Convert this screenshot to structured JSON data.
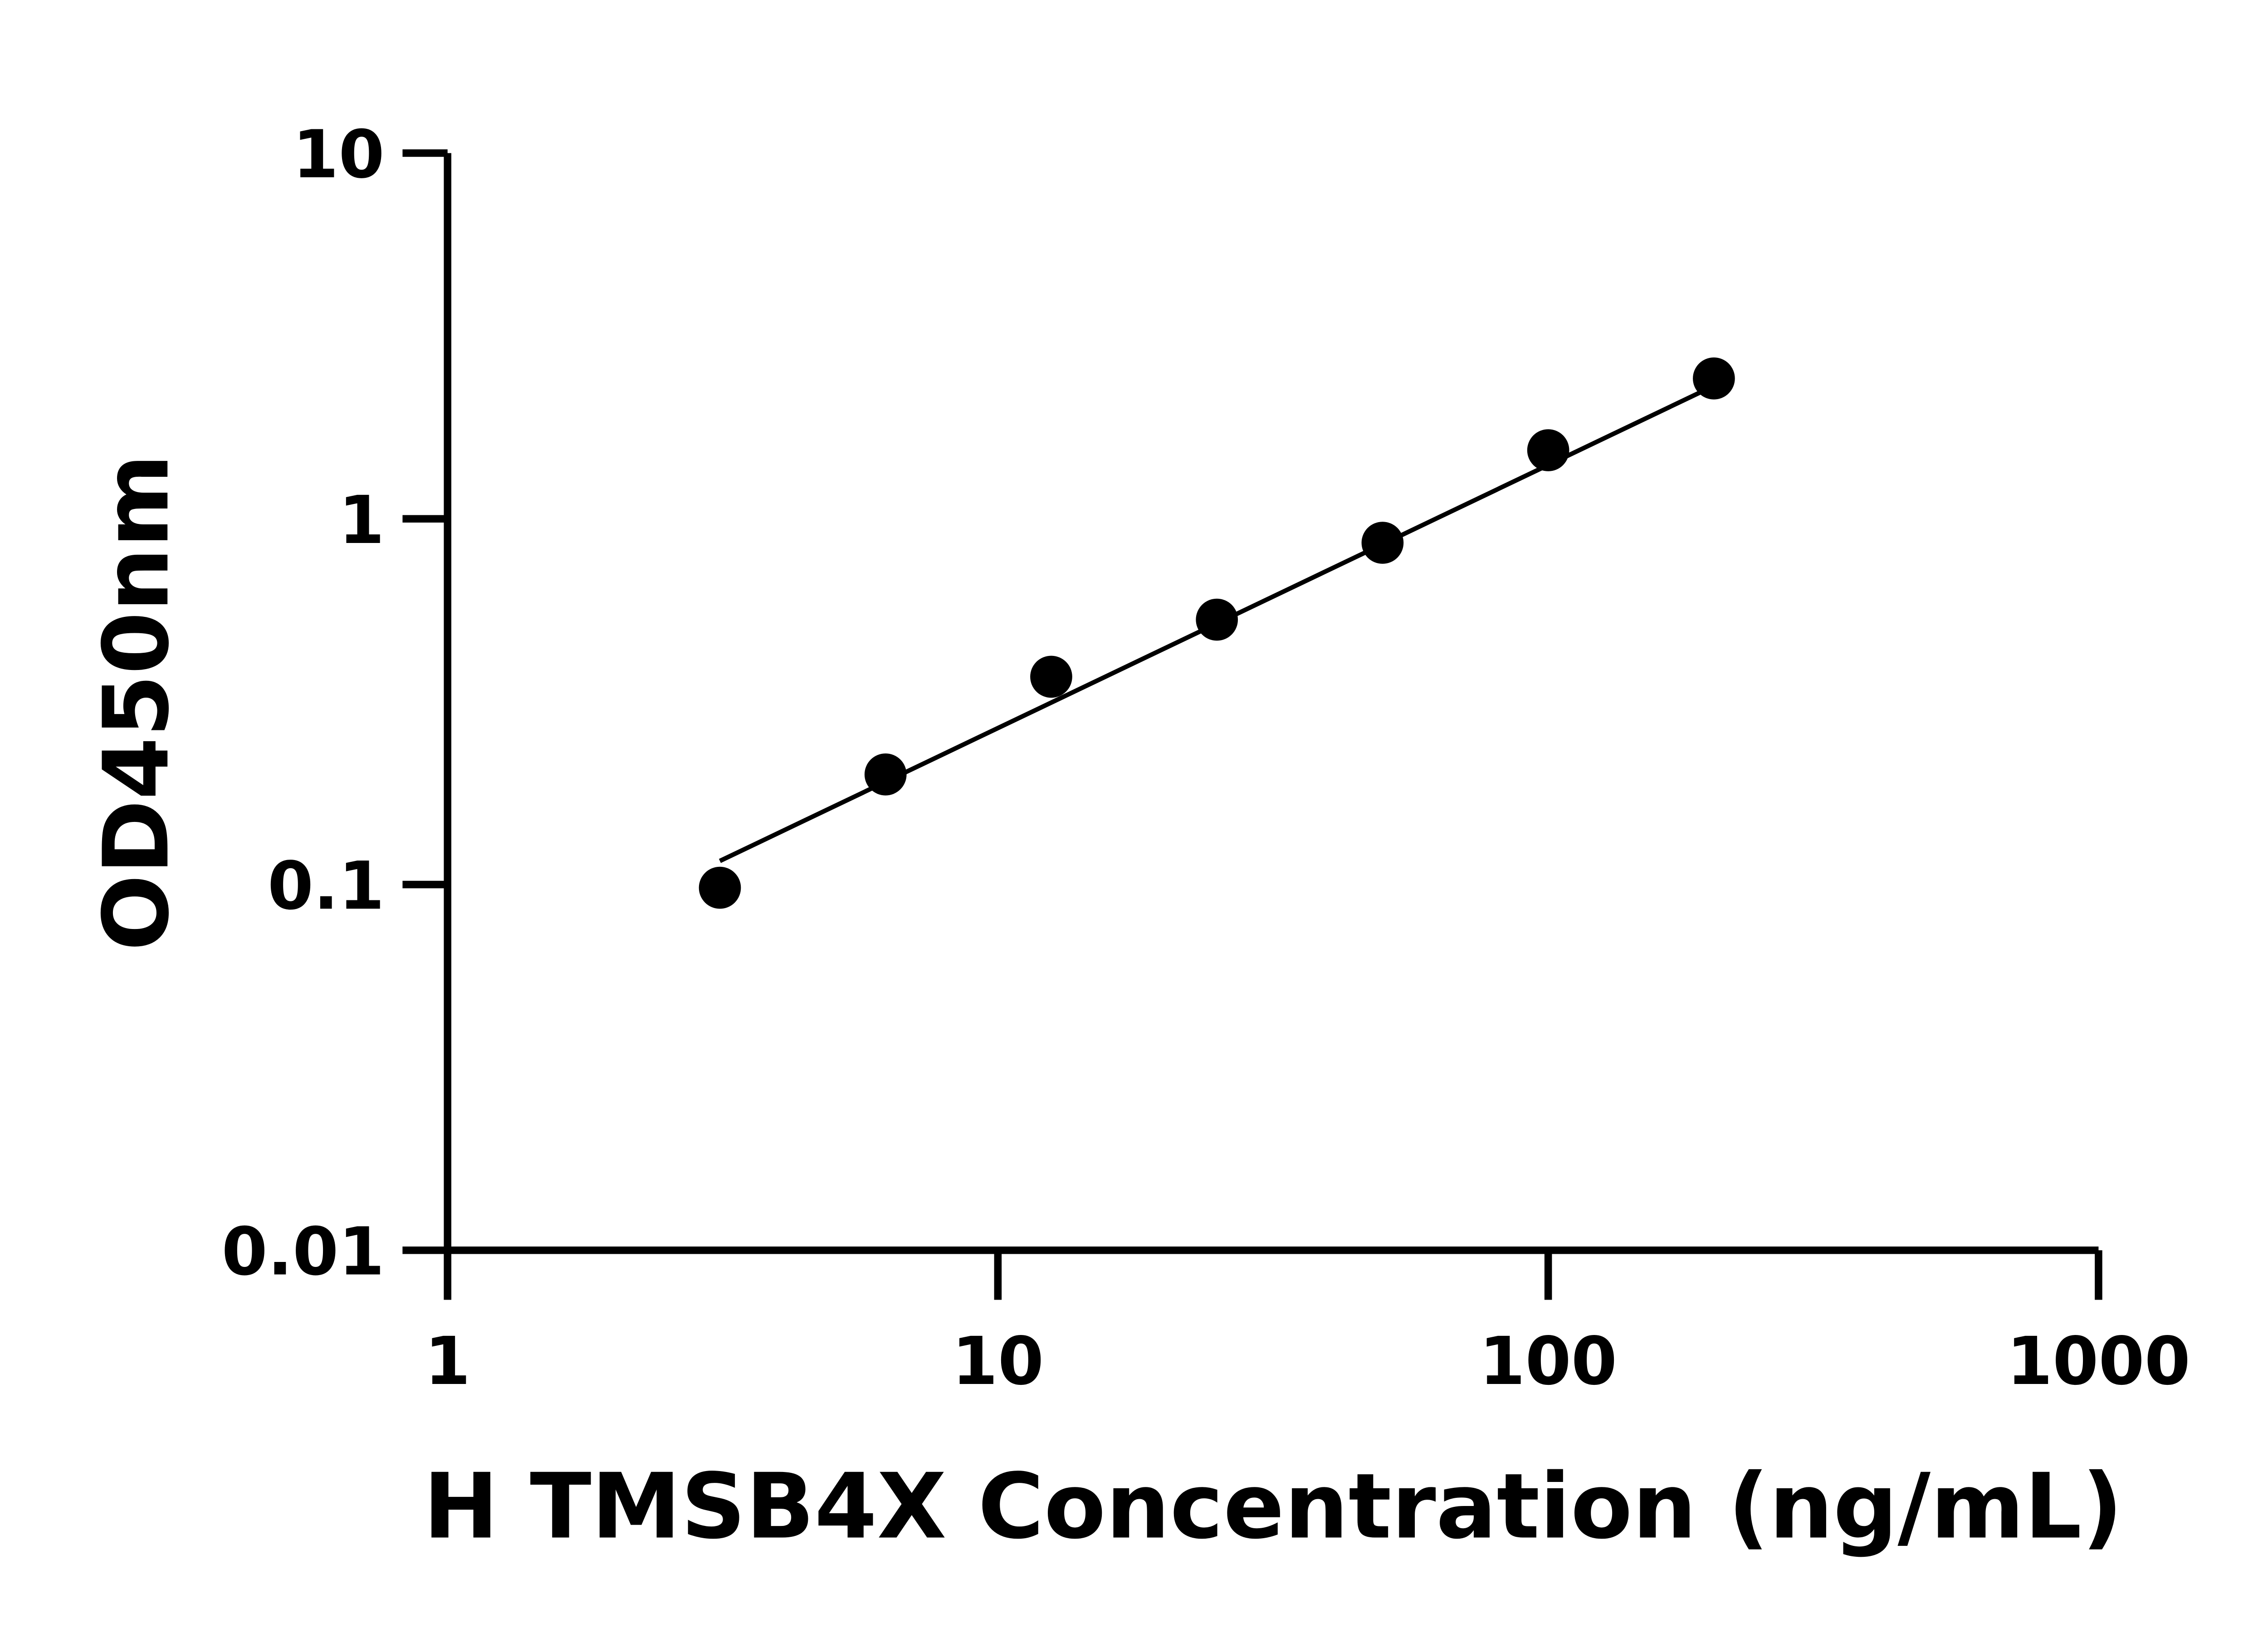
{
  "chart_data": {
    "type": "scatter",
    "x_label": "H TMSB4X Concentration (ng/mL)",
    "y_label": "OD450nm",
    "x_log": true,
    "y_log": true,
    "xlim": [
      1,
      1000
    ],
    "ylim": [
      0.01,
      10
    ],
    "xticks": [
      1,
      10,
      100,
      1000
    ],
    "yticks": [
      0.01,
      0.1,
      1,
      10
    ],
    "color": "#000000",
    "x": [
      3.125,
      6.25,
      12.5,
      25,
      50,
      100,
      200
    ],
    "values": [
      0.098,
      0.2,
      0.37,
      0.53,
      0.86,
      1.54,
      2.42
    ],
    "fit": {
      "x": [
        3.125,
        200
      ],
      "values": [
        0.116,
        2.31
      ]
    }
  }
}
